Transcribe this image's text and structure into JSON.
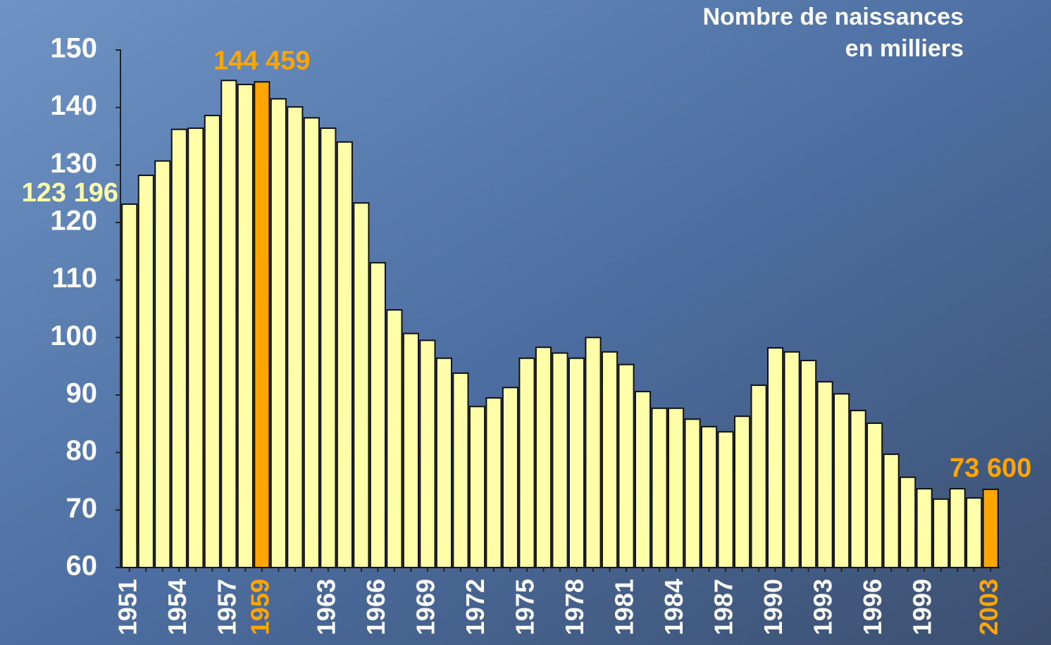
{
  "chart_data": {
    "type": "bar",
    "title": "Nombre de naissances",
    "subtitle": "en milliers",
    "categories": [
      "1951",
      null,
      null,
      "1954",
      null,
      null,
      "1957",
      null,
      "1959",
      null,
      null,
      null,
      "1963",
      null,
      null,
      "1966",
      null,
      null,
      "1969",
      null,
      null,
      "1972",
      null,
      null,
      "1975",
      null,
      null,
      "1978",
      null,
      null,
      "1981",
      null,
      null,
      "1984",
      null,
      null,
      "1987",
      null,
      null,
      "1990",
      null,
      null,
      "1993",
      null,
      null,
      "1996",
      null,
      null,
      "1999",
      null,
      null,
      null,
      "2003"
    ],
    "values": [
      123.196,
      128.2,
      130.7,
      136.2,
      136.4,
      138.6,
      144.7,
      144.0,
      144.459,
      141.5,
      140.1,
      138.2,
      136.4,
      134.0,
      123.4,
      113.0,
      104.8,
      100.7,
      99.5,
      96.4,
      93.8,
      88.0,
      89.5,
      91.3,
      96.4,
      98.3,
      97.3,
      96.4,
      100.0,
      97.5,
      95.3,
      90.6,
      87.7,
      87.7,
      85.8,
      84.5,
      83.6,
      86.3,
      91.7,
      98.2,
      97.5,
      96.0,
      92.3,
      90.2,
      87.3,
      85.1,
      79.7,
      75.7,
      73.7,
      71.9,
      73.7,
      72.1,
      73.6
    ],
    "value_labels": [
      "123 196",
      null,
      null,
      null,
      null,
      null,
      null,
      null,
      "144 459",
      null,
      null,
      null,
      null,
      null,
      null,
      null,
      null,
      null,
      null,
      null,
      null,
      null,
      null,
      null,
      null,
      null,
      null,
      null,
      null,
      null,
      null,
      null,
      null,
      null,
      null,
      null,
      null,
      null,
      null,
      null,
      null,
      null,
      null,
      null,
      null,
      null,
      null,
      null,
      null,
      null,
      null,
      null,
      "73 600"
    ],
    "color": "#ffffaa",
    "highlight_color": "#ffa500",
    "colors": [
      "#ffffaa",
      "#ffffaa",
      "#ffffaa",
      "#ffffaa",
      "#ffffaa",
      "#ffffaa",
      "#ffffaa",
      "#ffffaa",
      "#ffa500",
      "#ffffaa",
      "#ffffaa",
      "#ffffaa",
      "#ffffaa",
      "#ffffaa",
      "#ffffaa",
      "#ffffaa",
      "#ffffaa",
      "#ffffaa",
      "#ffffaa",
      "#ffffaa",
      "#ffffaa",
      "#ffffaa",
      "#ffffaa",
      "#ffffaa",
      "#ffffaa",
      "#ffffaa",
      "#ffffaa",
      "#ffffaa",
      "#ffffaa",
      "#ffffaa",
      "#ffffaa",
      "#ffffaa",
      "#ffffaa",
      "#ffffaa",
      "#ffffaa",
      "#ffffaa",
      "#ffffaa",
      "#ffffaa",
      "#ffffaa",
      "#ffffaa",
      "#ffffaa",
      "#ffffaa",
      "#ffffaa",
      "#ffffaa",
      "#ffffaa",
      "#ffffaa",
      "#ffffaa",
      "#ffffaa",
      "#ffffaa",
      "#ffffaa",
      "#ffffaa",
      "#ffffaa",
      "#ffa500"
    ],
    "ylim": [
      60,
      150
    ],
    "yticks": [
      60,
      70,
      80,
      90,
      100,
      110,
      120,
      130,
      140,
      150
    ],
    "grid": false
  }
}
